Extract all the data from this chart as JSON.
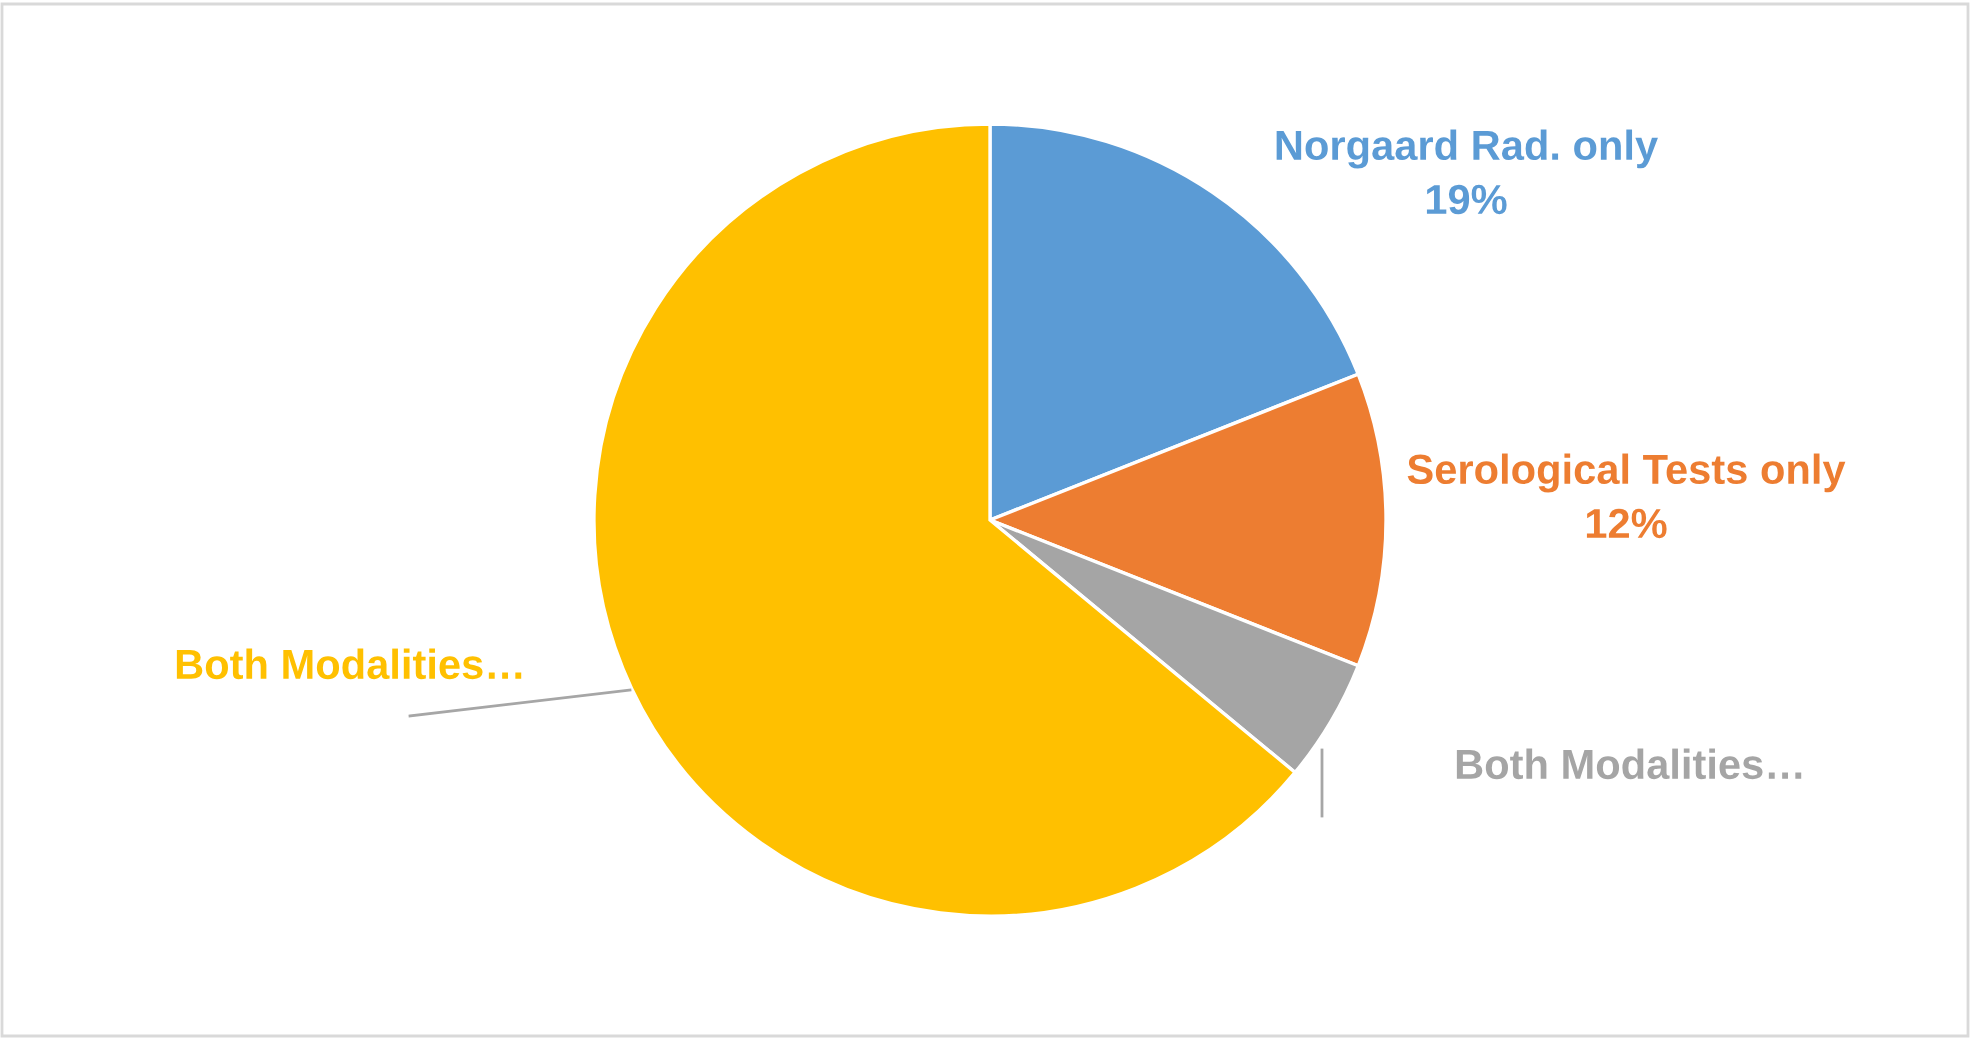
{
  "chart_data": {
    "type": "pie",
    "categories": [
      "Norgaard Rad. only",
      "Serological Tests only",
      "Both Modalities…",
      "Both Modalities…"
    ],
    "values": [
      19,
      12,
      5,
      64
    ],
    "colors": [
      "#5b9bd5",
      "#ed7d31",
      "#a5a5a5",
      "#ffc000"
    ],
    "value_labels": [
      "19%",
      "12%",
      null,
      null
    ],
    "legend": false
  }
}
